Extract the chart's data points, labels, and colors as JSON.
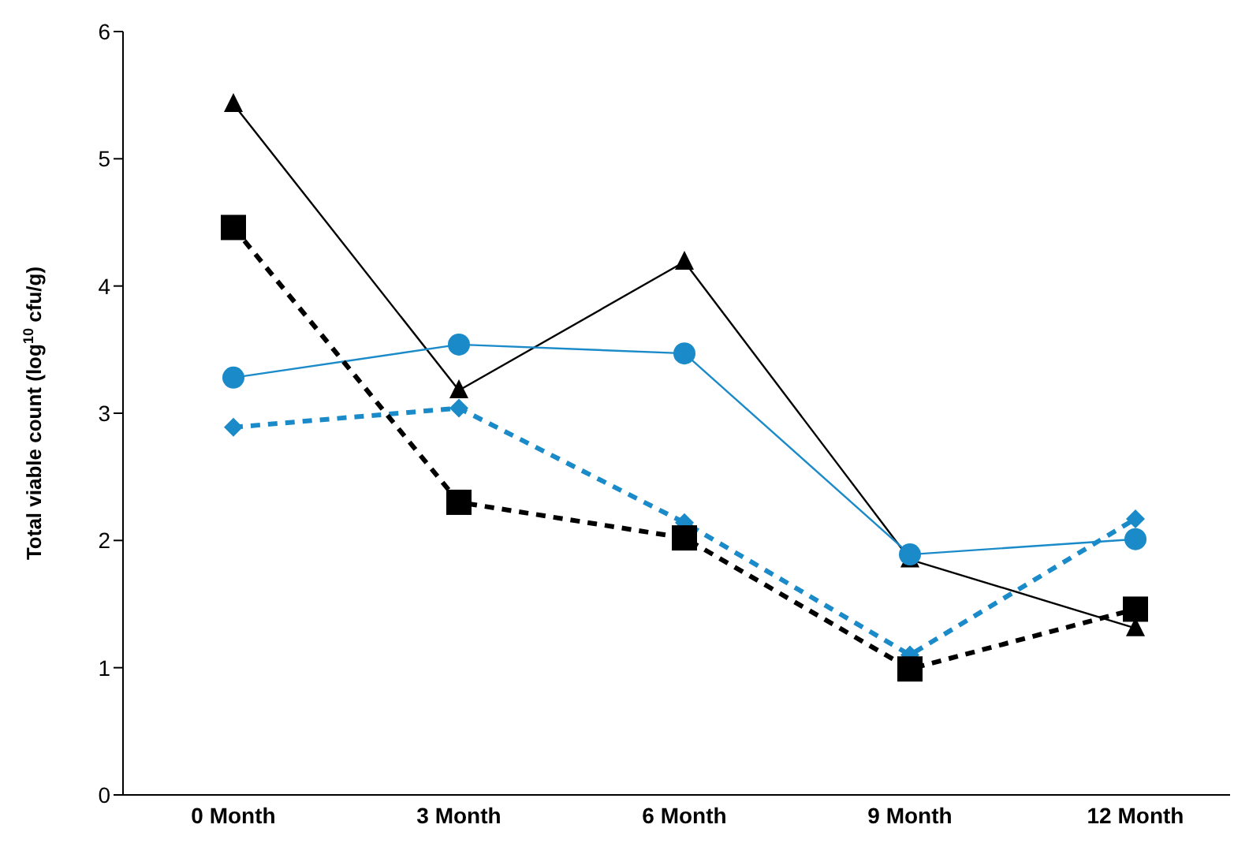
{
  "chart_data": {
    "type": "line",
    "ylabel": "Total viable count (log$^{10}$ cfu/g)",
    "categories": [
      "0 Month",
      "3 Month",
      "6 Month",
      "9 Month",
      "12 Month"
    ],
    "ylim": [
      0,
      6
    ],
    "yticks": [
      0,
      1,
      2,
      3,
      4,
      5,
      6
    ],
    "grid": false,
    "legend": false,
    "series": [
      {
        "color": "#000000",
        "marker": "triangle",
        "line_style": "solid",
        "values": [
          5.43,
          3.18,
          4.19,
          1.85,
          1.31
        ]
      },
      {
        "color": "#1a8bc8",
        "marker": "circle",
        "line_style": "solid",
        "values": [
          3.28,
          3.54,
          3.47,
          1.89,
          2.01
        ]
      },
      {
        "color": "#1a8bc8",
        "marker": "diamond",
        "line_style": "dashed",
        "values": [
          2.89,
          3.04,
          2.14,
          1.1,
          2.17
        ]
      },
      {
        "color": "#000000",
        "marker": "square",
        "line_style": "dashed",
        "values": [
          4.46,
          2.3,
          2.02,
          0.99,
          1.46
        ]
      }
    ]
  }
}
